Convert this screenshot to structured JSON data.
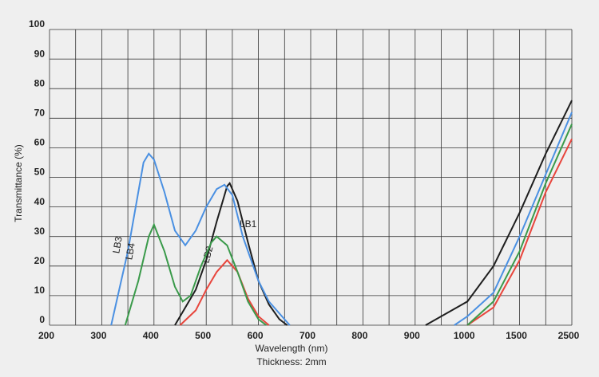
{
  "chart_data": {
    "type": "line",
    "x_label": "Wavelength (nm)",
    "y_label": "Transmittance (%)",
    "note": "Thickness: 2mm",
    "xlim": [
      200,
      2500
    ],
    "xticks": [
      200,
      300,
      400,
      500,
      600,
      700,
      800,
      900,
      1000,
      1500,
      2500
    ],
    "ylim": [
      0,
      100
    ],
    "yticks": [
      0,
      10,
      20,
      30,
      40,
      50,
      60,
      70,
      80,
      90,
      100
    ],
    "grid": true,
    "series": [
      {
        "name": "LB1",
        "color": "#1e1e1e",
        "x": [
          440,
          480,
          500,
          520,
          540,
          545,
          560,
          580,
          600,
          620,
          640,
          655,
          null,
          920,
          1000,
          1250,
          1500,
          2000,
          2500
        ],
        "values": [
          0,
          12,
          22,
          35,
          47,
          48,
          42,
          28,
          15,
          7,
          2,
          0,
          null,
          0,
          8,
          20,
          38,
          58,
          76
        ]
      },
      {
        "name": "LB2",
        "color": "#e8453c",
        "x": [
          450,
          480,
          500,
          520,
          540,
          560,
          580,
          600,
          620,
          null,
          1000,
          1250,
          1500,
          2000,
          2500
        ],
        "values": [
          0,
          5,
          12,
          18,
          22,
          18,
          9,
          3,
          0,
          null,
          0,
          6,
          22,
          45,
          63
        ]
      },
      {
        "name": "LB3",
        "color": "#4a90e2",
        "x": [
          318,
          350,
          380,
          390,
          400,
          420,
          440,
          460,
          480,
          500,
          520,
          535,
          550,
          570,
          600,
          620,
          650,
          660,
          null,
          975,
          1000,
          1250,
          1500,
          2000,
          2500
        ],
        "values": [
          0,
          25,
          55,
          58,
          56,
          45,
          32,
          27,
          32,
          40,
          46,
          47.5,
          44,
          30,
          15,
          8,
          2,
          0,
          null,
          0,
          3,
          11,
          30,
          51,
          72
        ]
      },
      {
        "name": "LB4",
        "color": "#3a9a4a",
        "x": [
          345,
          370,
          390,
          400,
          420,
          440,
          455,
          470,
          490,
          510,
          520,
          540,
          560,
          580,
          600,
          615,
          null,
          1000,
          1250,
          1500,
          2000,
          2500
        ],
        "values": [
          0,
          15,
          30,
          34,
          25,
          13,
          8,
          10,
          20,
          28,
          30,
          27,
          18,
          8,
          2,
          0,
          null,
          0,
          8,
          25,
          48,
          68
        ]
      }
    ]
  }
}
